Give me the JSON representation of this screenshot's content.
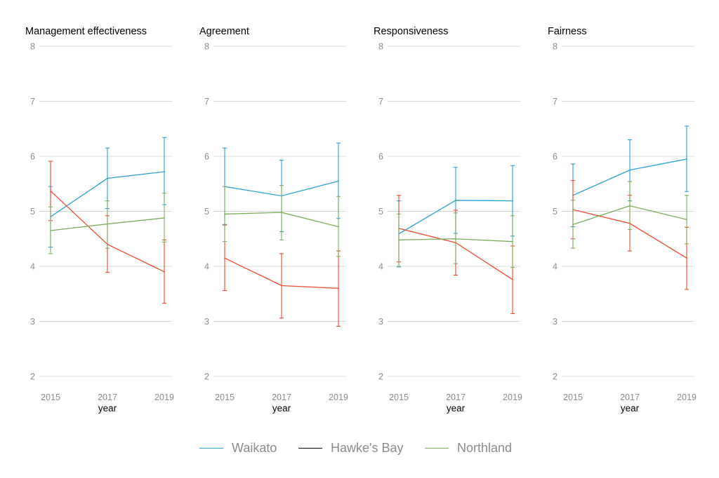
{
  "chart_data": {
    "type": "line",
    "xlabel": "year",
    "x": [
      2015,
      2017,
      2019
    ],
    "x_tick_labels": [
      "2015",
      "2017",
      "2019"
    ],
    "ylim": [
      2,
      8
    ],
    "y_ticks": [
      2,
      3,
      4,
      5,
      6,
      7,
      8
    ],
    "grid": "horizontal",
    "legend_position": "bottom",
    "error_bars": true,
    "colors": {
      "Waikato": "#2aa1d3",
      "Hawke's Bay": "#ee4b2b",
      "Northland": "#7aae5a"
    },
    "legend": [
      "Waikato",
      "Hawke's Bay",
      "Northland"
    ],
    "panels": [
      {
        "title": "Management effectiveness",
        "series": [
          {
            "name": "Waikato",
            "values": [
              4.9,
              5.6,
              5.72
            ],
            "lower": [
              4.35,
              5.05,
              5.12
            ],
            "upper": [
              5.45,
              6.15,
              6.34
            ]
          },
          {
            "name": "Hawke's Bay",
            "values": [
              5.37,
              4.4,
              3.9
            ],
            "lower": [
              4.83,
              3.89,
              3.33
            ],
            "upper": [
              5.91,
              4.92,
              4.48
            ]
          },
          {
            "name": "Northland",
            "values": [
              4.65,
              4.77,
              4.88
            ],
            "lower": [
              4.23,
              4.33,
              4.44
            ],
            "upper": [
              5.08,
              5.19,
              5.33
            ]
          }
        ]
      },
      {
        "title": "Agreement",
        "series": [
          {
            "name": "Waikato",
            "values": [
              5.45,
              5.28,
              5.55
            ],
            "lower": [
              4.76,
              4.63,
              4.87
            ],
            "upper": [
              6.15,
              5.93,
              6.24
            ]
          },
          {
            "name": "Hawke's Bay",
            "values": [
              4.15,
              3.65,
              3.6
            ],
            "lower": [
              3.56,
              3.06,
              2.91
            ],
            "upper": [
              4.75,
              4.23,
              4.28
            ]
          },
          {
            "name": "Northland",
            "values": [
              4.95,
              4.98,
              4.72
            ],
            "lower": [
              4.45,
              4.48,
              4.18
            ],
            "upper": [
              5.45,
              5.47,
              5.27
            ]
          }
        ]
      },
      {
        "title": "Responsiveness",
        "series": [
          {
            "name": "Waikato",
            "values": [
              4.59,
              5.2,
              5.19
            ],
            "lower": [
              3.99,
              4.6,
              4.55
            ],
            "upper": [
              5.19,
              5.8,
              5.83
            ]
          },
          {
            "name": "Hawke's Bay",
            "values": [
              4.69,
              4.43,
              3.76
            ],
            "lower": [
              4.08,
              3.84,
              3.14
            ],
            "upper": [
              5.29,
              5.02,
              4.37
            ]
          },
          {
            "name": "Northland",
            "values": [
              4.48,
              4.5,
              4.45
            ],
            "lower": [
              4.0,
              4.05,
              3.98
            ],
            "upper": [
              4.95,
              4.97,
              4.92
            ]
          }
        ]
      },
      {
        "title": "Fairness",
        "series": [
          {
            "name": "Waikato",
            "values": [
              5.29,
              5.75,
              5.95
            ],
            "lower": [
              4.72,
              5.19,
              5.36
            ],
            "upper": [
              5.86,
              6.3,
              6.55
            ]
          },
          {
            "name": "Hawke's Bay",
            "values": [
              5.03,
              4.78,
              4.15
            ],
            "lower": [
              4.5,
              4.28,
              3.58
            ],
            "upper": [
              5.56,
              5.29,
              4.71
            ]
          },
          {
            "name": "Northland",
            "values": [
              4.76,
              5.1,
              4.85
            ],
            "lower": [
              4.33,
              4.67,
              4.41
            ],
            "upper": [
              5.2,
              5.54,
              5.29
            ]
          }
        ]
      }
    ]
  }
}
